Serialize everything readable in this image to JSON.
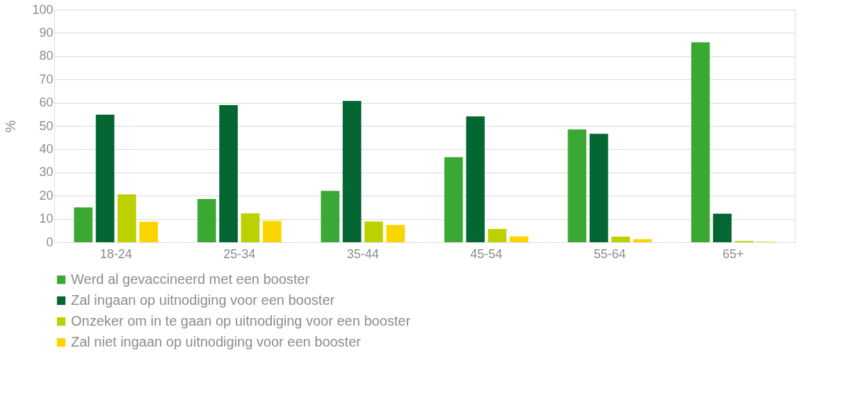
{
  "chart_data": {
    "type": "bar",
    "ylabel": "%",
    "categories": [
      "18-24",
      "25-34",
      "35-44",
      "45-54",
      "55-64",
      "65+"
    ],
    "series": [
      {
        "name": "Werd al gevaccineerd met een booster",
        "color": "#3ca834",
        "values": [
          15.0,
          18.6,
          22.1,
          36.6,
          48.5,
          86.0
        ]
      },
      {
        "name": "Zal ingaan op uitnodiging voor een booster",
        "color": "#036633",
        "values": [
          54.9,
          59.0,
          60.8,
          54.1,
          46.6,
          12.3
        ]
      },
      {
        "name": "Onzeker om in te gaan op uitnodiging voor een booster",
        "color": "#bdd100",
        "values": [
          20.6,
          12.4,
          8.9,
          5.7,
          2.4,
          0.5
        ]
      },
      {
        "name": "Zal niet ingaan op uitnodiging voor een booster",
        "color": "#fbd500",
        "values": [
          8.8,
          9.2,
          7.4,
          2.5,
          1.3,
          0.2
        ]
      }
    ],
    "ylim": [
      0,
      100
    ],
    "yticks": [
      0,
      10,
      20,
      30,
      40,
      50,
      60,
      70,
      80,
      90,
      100
    ],
    "grid": "y",
    "legend": "bottom"
  }
}
